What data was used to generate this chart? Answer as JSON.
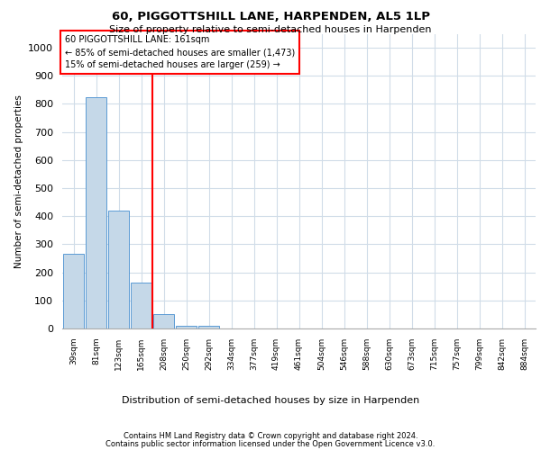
{
  "title1": "60, PIGGOTTSHILL LANE, HARPENDEN, AL5 1LP",
  "title2": "Size of property relative to semi-detached houses in Harpenden",
  "xlabel": "Distribution of semi-detached houses by size in Harpenden",
  "ylabel": "Number of semi-detached properties",
  "categories": [
    "39sqm",
    "81sqm",
    "123sqm",
    "165sqm",
    "208sqm",
    "250sqm",
    "292sqm",
    "334sqm",
    "377sqm",
    "419sqm",
    "461sqm",
    "504sqm",
    "546sqm",
    "588sqm",
    "630sqm",
    "673sqm",
    "715sqm",
    "757sqm",
    "799sqm",
    "842sqm",
    "884sqm"
  ],
  "values": [
    265,
    825,
    420,
    165,
    50,
    10,
    10,
    0,
    0,
    0,
    0,
    0,
    0,
    0,
    0,
    0,
    0,
    0,
    0,
    0,
    0
  ],
  "bar_color": "#c5d8e8",
  "bar_edge_color": "#5b9bd5",
  "redline_x": 3.5,
  "annotation_line1": "60 PIGGOTTSHILL LANE: 161sqm",
  "annotation_line2": "← 85% of semi-detached houses are smaller (1,473)",
  "annotation_line3": "15% of semi-detached houses are larger (259) →",
  "ylim": [
    0,
    1050
  ],
  "yticks": [
    0,
    100,
    200,
    300,
    400,
    500,
    600,
    700,
    800,
    900,
    1000
  ],
  "background_color": "#ffffff",
  "grid_color": "#d0dce8",
  "footer1": "Contains HM Land Registry data © Crown copyright and database right 2024.",
  "footer2": "Contains public sector information licensed under the Open Government Licence v3.0."
}
